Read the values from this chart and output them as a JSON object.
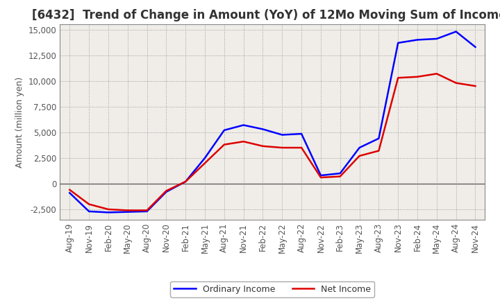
{
  "title": "[6432]  Trend of Change in Amount (YoY) of 12Mo Moving Sum of Incomes",
  "ylabel": "Amount (million yen)",
  "ylim": [
    -3500,
    15500
  ],
  "yticks": [
    -2500,
    0,
    2500,
    5000,
    7500,
    10000,
    12500,
    15000
  ],
  "bg_color": "#ffffff",
  "plot_bg_color": "#f0ede8",
  "x_labels": [
    "Aug-19",
    "Nov-19",
    "Feb-20",
    "May-20",
    "Aug-20",
    "Nov-20",
    "Feb-21",
    "May-21",
    "Aug-21",
    "Nov-21",
    "Feb-22",
    "May-22",
    "Aug-22",
    "Nov-22",
    "Feb-23",
    "May-23",
    "Aug-23",
    "Nov-23",
    "Feb-24",
    "May-24",
    "Aug-24",
    "Nov-24"
  ],
  "ordinary_income": [
    -900,
    -2700,
    -2800,
    -2750,
    -2700,
    -800,
    200,
    2500,
    5200,
    5700,
    5300,
    4750,
    4850,
    800,
    1000,
    3500,
    4400,
    13700,
    14000,
    14100,
    14800,
    13300
  ],
  "net_income": [
    -600,
    -2000,
    -2500,
    -2600,
    -2600,
    -700,
    200,
    2000,
    3800,
    4100,
    3650,
    3500,
    3500,
    600,
    700,
    2700,
    3200,
    10300,
    10400,
    10700,
    9800,
    9500
  ],
  "ordinary_color": "#0000ff",
  "net_color": "#dd0000",
  "line_width": 1.8,
  "legend_labels": [
    "Ordinary Income",
    "Net Income"
  ],
  "grid_color": "#999999",
  "zero_line_color": "#555555",
  "title_fontsize": 12,
  "title_color": "#333333",
  "tick_color": "#555555",
  "label_fontsize": 8.5,
  "ylabel_fontsize": 9
}
